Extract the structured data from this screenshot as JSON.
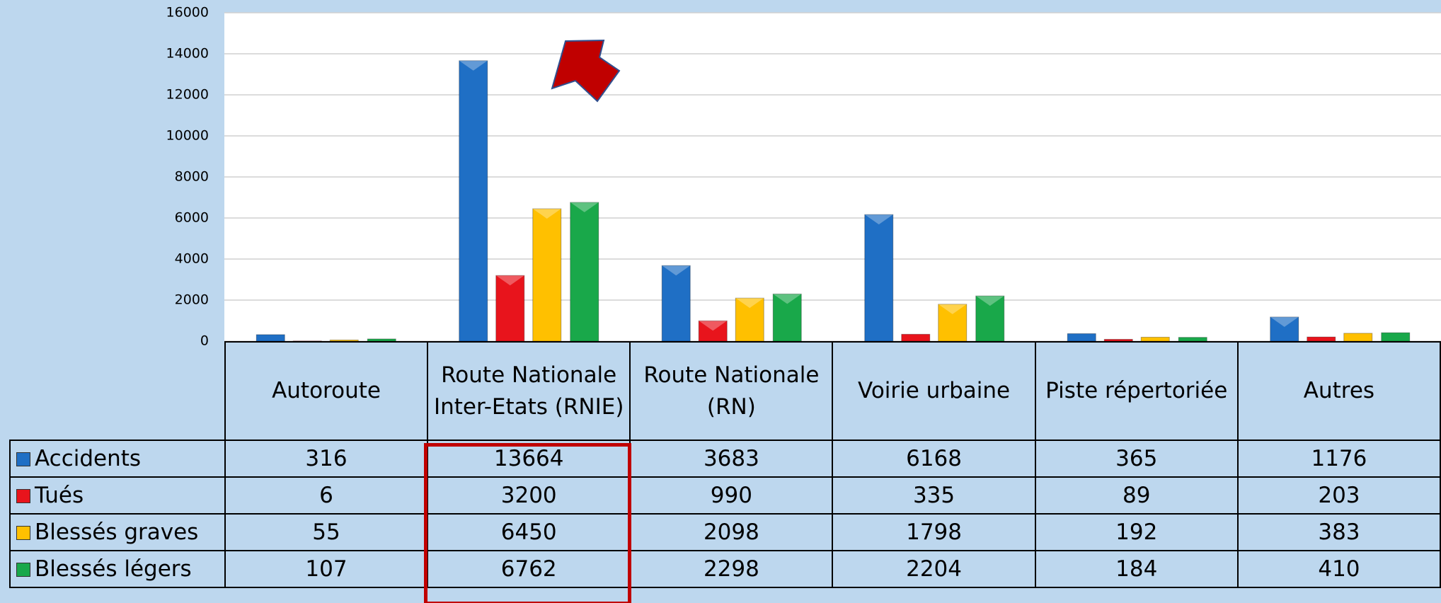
{
  "chart_data": {
    "type": "bar",
    "categories": [
      "Autoroute",
      "Route Nationale Inter-Etats (RNIE)",
      "Route Nationale (RN)",
      "Voirie urbaine",
      "Piste répertoriée",
      "Autres"
    ],
    "series": [
      {
        "name": "Accidents",
        "color": "#1f6fc5",
        "values": [
          316,
          13664,
          3683,
          6168,
          365,
          1176
        ]
      },
      {
        "name": "Tués",
        "color": "#e8141c",
        "values": [
          6,
          3200,
          990,
          335,
          89,
          203
        ]
      },
      {
        "name": "Blessés graves",
        "color": "#ffc000",
        "values": [
          55,
          6450,
          2098,
          1798,
          192,
          383
        ]
      },
      {
        "name": "Blessés légers",
        "color": "#19a84a",
        "values": [
          107,
          6762,
          2298,
          2204,
          184,
          410
        ]
      }
    ],
    "ylim": [
      0,
      16000
    ],
    "yticks": [
      0,
      2000,
      4000,
      6000,
      8000,
      10000,
      12000,
      14000,
      16000
    ],
    "grid": true
  }
}
